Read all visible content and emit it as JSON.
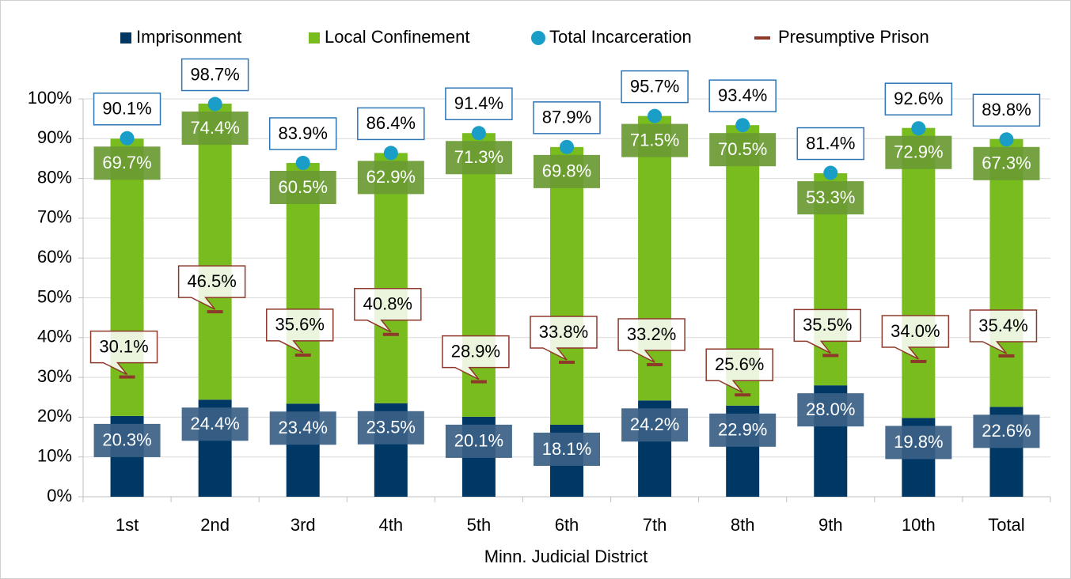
{
  "chart_data": {
    "type": "bar",
    "stacked": true,
    "x_label": "Minn. Judicial District",
    "categories": [
      "1st",
      "2nd",
      "3rd",
      "4th",
      "5th",
      "6th",
      "7th",
      "8th",
      "9th",
      "10th",
      "Total"
    ],
    "series": [
      {
        "name": "Imprisonment",
        "color": "#003865",
        "label_fill": "#3a5f86",
        "kind": "bar",
        "values": [
          20.3,
          24.4,
          23.4,
          23.5,
          20.1,
          18.1,
          24.2,
          22.9,
          28.0,
          19.8,
          22.6
        ],
        "value_labels": [
          "20.3%",
          "24.4%",
          "23.4%",
          "23.5%",
          "20.1%",
          "18.1%",
          "24.2%",
          "22.9%",
          "28.0%",
          "19.8%",
          "22.6%"
        ]
      },
      {
        "name": "Local Confinement",
        "color": "#78bc1e",
        "label_fill": "#6a9a33",
        "kind": "bar",
        "values": [
          69.7,
          74.4,
          60.5,
          62.9,
          71.3,
          69.8,
          71.5,
          70.5,
          53.3,
          72.9,
          67.3
        ],
        "value_labels": [
          "69.7%",
          "74.4%",
          "60.5%",
          "62.9%",
          "71.3%",
          "69.8%",
          "71.5%",
          "70.5%",
          "53.3%",
          "72.9%",
          "67.3%"
        ]
      },
      {
        "name": "Total Incarceration",
        "color": "#1a9dc6",
        "label_border": "#2e75b6",
        "kind": "circle",
        "values": [
          90.1,
          98.7,
          83.9,
          86.4,
          91.4,
          87.9,
          95.7,
          93.4,
          81.4,
          92.6,
          89.8
        ],
        "value_labels": [
          "90.1%",
          "98.7%",
          "83.9%",
          "86.4%",
          "91.4%",
          "87.9%",
          "95.7%",
          "93.4%",
          "81.4%",
          "92.6%",
          "89.8%"
        ]
      },
      {
        "name": "Presumptive Prison",
        "color": "#8e3a2b",
        "label_border": "#8e3a2b",
        "kind": "dash",
        "values": [
          30.1,
          46.5,
          35.6,
          40.8,
          28.9,
          33.8,
          33.2,
          25.6,
          35.5,
          34.0,
          35.4
        ],
        "value_labels": [
          "30.1%",
          "46.5%",
          "35.6%",
          "40.8%",
          "28.9%",
          "33.8%",
          "33.2%",
          "25.6%",
          "35.5%",
          "34.0%",
          "35.4%"
        ]
      }
    ],
    "ylim": [
      0,
      100
    ],
    "yticks": [
      {
        "value": 0,
        "label": "0%"
      },
      {
        "value": 10,
        "label": "10%"
      },
      {
        "value": 20,
        "label": "20%"
      },
      {
        "value": 30,
        "label": "30%"
      },
      {
        "value": 40,
        "label": "40%"
      },
      {
        "value": 50,
        "label": "50%"
      },
      {
        "value": 60,
        "label": "60%"
      },
      {
        "value": 70,
        "label": "70%"
      },
      {
        "value": 80,
        "label": "80%"
      },
      {
        "value": 90,
        "label": "90%"
      },
      {
        "value": 100,
        "label": "100%"
      }
    ],
    "grid": true,
    "legend": "top"
  }
}
